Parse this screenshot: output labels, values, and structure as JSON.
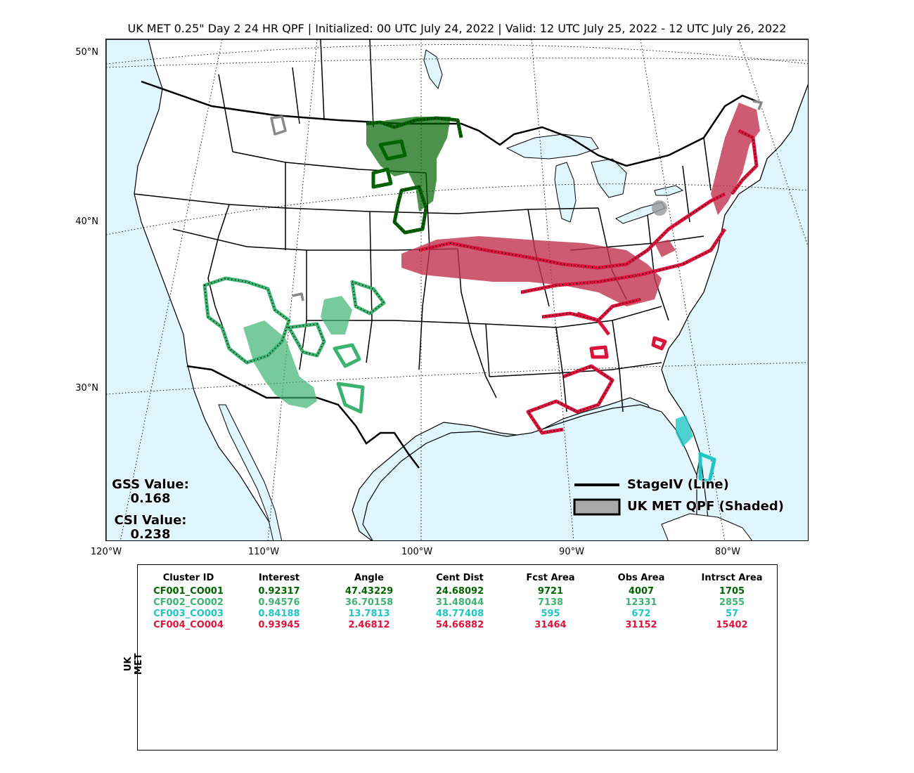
{
  "title": "UK MET 0.25\" Day 2 24 HR QPF | Initialized: 00 UTC July 24, 2022 | Valid: 12 UTC July 25, 2022 - 12 UTC July 26, 2022",
  "map": {
    "lat_labels": [
      "50°N",
      "40°N",
      "30°N"
    ],
    "lon_labels": [
      "120°W",
      "110°W",
      "100°W",
      "90°W",
      "80°W"
    ],
    "colors": {
      "ocean": "#dff6ff",
      "land": "#ffffff",
      "border": "#000000",
      "cluster1": "#006400",
      "cluster2": "#3cb371",
      "cluster3": "#20c5c5",
      "cluster4": "#dc143c",
      "unmatched": "#888888"
    }
  },
  "scores": {
    "gss_label": "GSS Value:",
    "gss_value": "0.168",
    "csi_label": "CSI Value:",
    "csi_value": "0.238"
  },
  "legend": {
    "line_label": "StageIV (Line)",
    "shaded_label": "UK MET QPF (Shaded)"
  },
  "table": {
    "model_label": "UK MET",
    "headers": [
      "Cluster ID",
      "Interest",
      "Angle",
      "Cent Dist",
      "Fcst Area",
      "Obs Area",
      "Intrsct Area"
    ],
    "rows": [
      {
        "color": "#006400",
        "cells": [
          "CF001_CO001",
          "0.92317",
          "47.43229",
          "24.68092",
          "9721",
          "4007",
          "1705"
        ]
      },
      {
        "color": "#3cb371",
        "cells": [
          "CF002_CO002",
          "0.94576",
          "36.70158",
          "31.48044",
          "7138",
          "12331",
          "2855"
        ]
      },
      {
        "color": "#20c5c5",
        "cells": [
          "CF003_CO003",
          "0.84188",
          "13.7813",
          "48.77408",
          "595",
          "672",
          "57"
        ]
      },
      {
        "color": "#dc143c",
        "cells": [
          "CF004_CO004",
          "0.93945",
          "2.46812",
          "54.66882",
          "31464",
          "31152",
          "15402"
        ]
      }
    ]
  }
}
